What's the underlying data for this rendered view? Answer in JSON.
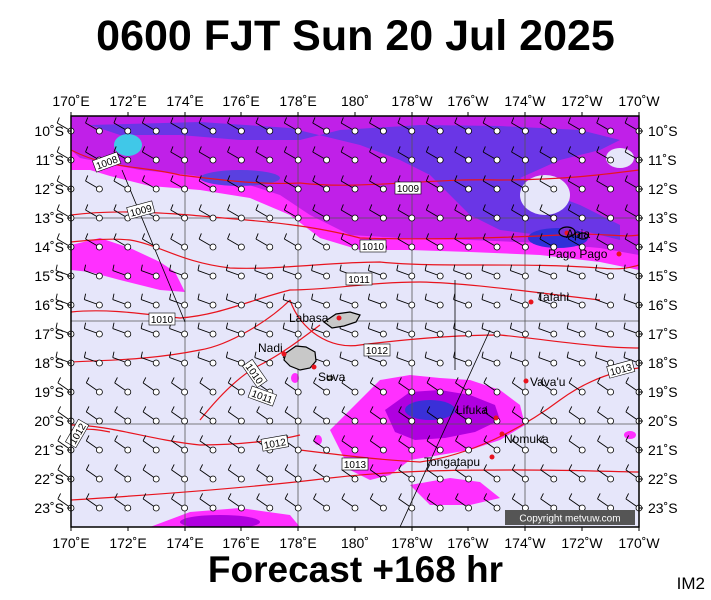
{
  "title": "0600 FJT Sun 20 Jul 2025",
  "footer": "Forecast +168 hr",
  "model_label": "IM2",
  "copyright": "Copyright metvuw.com",
  "colors": {
    "background": "#e6e6fa",
    "isobar": "#e8141e",
    "rain_light": "#ff30ff",
    "rain_mid": "#b000e0",
    "rain_heavy": "#5030e0",
    "rain_extreme": "#40c8e8"
  },
  "axes": {
    "top_labels": [
      "170˚E",
      "172˚E",
      "174˚E",
      "176˚E",
      "178˚E",
      "180˚",
      "178˚W",
      "176˚W",
      "174˚W",
      "172˚W",
      "170˚W"
    ],
    "bottom_labels": [
      "170˚E",
      "172˚E",
      "174˚E",
      "176˚E",
      "178˚E",
      "180˚",
      "178˚W",
      "176˚W",
      "174˚W",
      "172˚W",
      "170˚W"
    ],
    "left_labels": [
      "10˚S",
      "11˚S",
      "12˚S",
      "13˚S",
      "14˚S",
      "15˚S",
      "16˚S",
      "17˚S",
      "18˚S",
      "19˚S",
      "20˚S",
      "21˚S",
      "22˚S",
      "23˚S"
    ],
    "right_labels": [
      "10˚S",
      "11˚S",
      "12˚S",
      "13˚S",
      "14˚S",
      "15˚S",
      "16˚S",
      "17˚S",
      "18˚S",
      "19˚S",
      "20˚S",
      "21˚S",
      "22˚S",
      "23˚S"
    ]
  },
  "places": [
    {
      "name": "Apia"
    },
    {
      "name": "Pago Pago"
    },
    {
      "name": "Tafahi"
    },
    {
      "name": "Labasa"
    },
    {
      "name": "Nadi"
    },
    {
      "name": "Suva"
    },
    {
      "name": "Vava'u"
    },
    {
      "name": "Lifuka"
    },
    {
      "name": "Nomuka"
    },
    {
      "name": "Tongatapu"
    }
  ],
  "isobar_labels": [
    "1008",
    "1009",
    "1009",
    "1010",
    "1010",
    "1011",
    "1012",
    "1010",
    "1011",
    "1012",
    "1013",
    "1013",
    "1012"
  ]
}
